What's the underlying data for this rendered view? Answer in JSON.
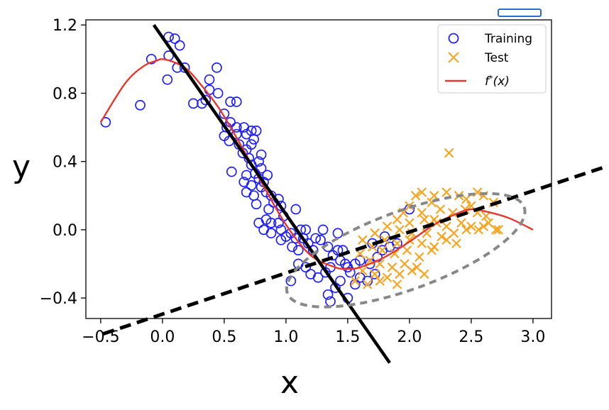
{
  "chart_data": {
    "type": "scatter",
    "title": "",
    "xlabel": "x",
    "ylabel": "y",
    "xlim": [
      -0.62,
      3.15
    ],
    "ylim": [
      -0.52,
      1.23
    ],
    "xticks": [
      -0.5,
      0.0,
      0.5,
      1.0,
      1.5,
      2.0,
      2.5,
      3.0
    ],
    "xtick_labels": [
      "−0.5",
      "0.0",
      "0.5",
      "1.0",
      "1.5",
      "2.0",
      "2.5",
      "3.0"
    ],
    "yticks": [
      -0.4,
      0.0,
      0.4,
      0.8,
      1.2
    ],
    "ytick_labels": [
      "−0.4",
      "0.0",
      "0.4",
      "0.8",
      "1.2"
    ],
    "grid": false,
    "legend_position": "top-right",
    "colors": {
      "training": "#1f1fff",
      "test": "#f5a623",
      "curve": "#e8372c",
      "solid_line": "#000000",
      "dashed_line": "#000000",
      "ellipse": "#888888"
    },
    "series": [
      {
        "name": "Training",
        "marker": "circle",
        "points": [
          [
            -0.46,
            0.63
          ],
          [
            -0.18,
            0.73
          ],
          [
            -0.09,
            1.0
          ],
          [
            0.05,
            1.13
          ],
          [
            0.1,
            1.12
          ],
          [
            0.14,
            1.08
          ],
          [
            0.05,
            1.02
          ],
          [
            0.12,
            0.95
          ],
          [
            0.18,
            0.95
          ],
          [
            0.04,
            0.88
          ],
          [
            0.44,
            0.95
          ],
          [
            0.38,
            0.88
          ],
          [
            0.38,
            0.82
          ],
          [
            0.35,
            0.76
          ],
          [
            0.25,
            0.74
          ],
          [
            0.32,
            0.74
          ],
          [
            0.45,
            0.8
          ],
          [
            0.55,
            0.75
          ],
          [
            0.6,
            0.75
          ],
          [
            0.5,
            0.68
          ],
          [
            0.55,
            0.63
          ],
          [
            0.52,
            0.6
          ],
          [
            0.6,
            0.6
          ],
          [
            0.66,
            0.6
          ],
          [
            0.68,
            0.56
          ],
          [
            0.6,
            0.56
          ],
          [
            0.5,
            0.55
          ],
          [
            0.54,
            0.52
          ],
          [
            0.62,
            0.5
          ],
          [
            0.68,
            0.47
          ],
          [
            0.72,
            0.5
          ],
          [
            0.72,
            0.58
          ],
          [
            0.76,
            0.58
          ],
          [
            0.74,
            0.53
          ],
          [
            0.65,
            0.45
          ],
          [
            0.7,
            0.42
          ],
          [
            0.8,
            0.44
          ],
          [
            0.78,
            0.4
          ],
          [
            0.72,
            0.38
          ],
          [
            0.8,
            0.36
          ],
          [
            0.75,
            0.33
          ],
          [
            0.68,
            0.32
          ],
          [
            0.78,
            0.3
          ],
          [
            0.82,
            0.28
          ],
          [
            0.85,
            0.32
          ],
          [
            0.8,
            0.25
          ],
          [
            0.72,
            0.26
          ],
          [
            0.68,
            0.22
          ],
          [
            0.74,
            0.2
          ],
          [
            0.76,
            0.15
          ],
          [
            0.56,
            0.34
          ],
          [
            0.66,
            0.28
          ],
          [
            0.84,
            0.22
          ],
          [
            0.88,
            0.2
          ],
          [
            0.9,
            0.16
          ],
          [
            0.86,
            0.12
          ],
          [
            0.94,
            0.18
          ],
          [
            0.96,
            0.14
          ],
          [
            0.84,
            0.06
          ],
          [
            0.88,
            0.04
          ],
          [
            0.82,
            0.0
          ],
          [
            0.88,
            -0.02
          ],
          [
            0.94,
            0.04
          ],
          [
            0.96,
            0.0
          ],
          [
            0.78,
            0.04
          ],
          [
            0.98,
            0.08
          ],
          [
            1.08,
            0.12
          ],
          [
            1.0,
            -0.04
          ],
          [
            1.04,
            -0.02
          ],
          [
            0.96,
            -0.06
          ],
          [
            1.08,
            -0.05
          ],
          [
            1.12,
            0.0
          ],
          [
            1.16,
            0.0
          ],
          [
            1.14,
            -0.05
          ],
          [
            1.05,
            -0.1
          ],
          [
            1.1,
            -0.12
          ],
          [
            1.18,
            -0.08
          ],
          [
            1.24,
            -0.05
          ],
          [
            1.22,
            -0.12
          ],
          [
            1.3,
            0.0
          ],
          [
            1.28,
            -0.06
          ],
          [
            1.34,
            -0.1
          ],
          [
            1.42,
            -0.12
          ],
          [
            1.38,
            -0.15
          ],
          [
            1.44,
            -0.18
          ],
          [
            1.48,
            -0.2
          ],
          [
            1.5,
            -0.22
          ],
          [
            1.52,
            -0.25
          ],
          [
            1.56,
            -0.2
          ],
          [
            1.6,
            -0.18
          ],
          [
            1.46,
            -0.12
          ],
          [
            1.36,
            -0.22
          ],
          [
            1.32,
            -0.25
          ],
          [
            1.26,
            -0.28
          ],
          [
            1.2,
            -0.26
          ],
          [
            1.16,
            -0.22
          ],
          [
            1.1,
            -0.2
          ],
          [
            1.04,
            -0.3
          ],
          [
            1.44,
            -0.3
          ],
          [
            1.56,
            -0.32
          ],
          [
            1.6,
            -0.28
          ],
          [
            1.66,
            -0.3
          ],
          [
            1.72,
            -0.26
          ],
          [
            1.68,
            -0.2
          ],
          [
            1.74,
            -0.16
          ],
          [
            1.78,
            -0.12
          ],
          [
            1.84,
            -0.1
          ],
          [
            1.7,
            -0.08
          ],
          [
            1.8,
            -0.04
          ],
          [
            1.9,
            -0.08
          ],
          [
            1.34,
            -0.38
          ],
          [
            1.36,
            -0.42
          ],
          [
            1.5,
            -0.4
          ],
          [
            1.4,
            -0.34
          ],
          [
            2.0,
            0.12
          ],
          [
            1.42,
            -0.02
          ]
        ]
      },
      {
        "name": "Test",
        "marker": "x",
        "points": [
          [
            2.32,
            0.45
          ],
          [
            2.05,
            0.2
          ],
          [
            2.1,
            0.22
          ],
          [
            2.2,
            0.2
          ],
          [
            2.3,
            0.22
          ],
          [
            2.4,
            0.2
          ],
          [
            2.46,
            0.18
          ],
          [
            2.55,
            0.22
          ],
          [
            2.6,
            0.2
          ],
          [
            2.18,
            0.16
          ],
          [
            2.0,
            0.14
          ],
          [
            1.95,
            0.1
          ],
          [
            2.1,
            0.1
          ],
          [
            2.25,
            0.12
          ],
          [
            2.35,
            0.1
          ],
          [
            2.45,
            0.12
          ],
          [
            2.5,
            0.14
          ],
          [
            2.55,
            0.1
          ],
          [
            2.62,
            0.08
          ],
          [
            1.9,
            0.06
          ],
          [
            2.0,
            0.04
          ],
          [
            2.12,
            0.06
          ],
          [
            2.22,
            0.04
          ],
          [
            2.3,
            0.02
          ],
          [
            2.42,
            0.04
          ],
          [
            2.5,
            0.02
          ],
          [
            2.6,
            0.02
          ],
          [
            2.7,
            0.0
          ],
          [
            1.82,
            0.02
          ],
          [
            1.92,
            0.0
          ],
          [
            2.02,
            -0.02
          ],
          [
            2.14,
            -0.02
          ],
          [
            2.26,
            -0.04
          ],
          [
            2.36,
            -0.02
          ],
          [
            2.46,
            0.0
          ],
          [
            2.56,
            0.0
          ],
          [
            1.72,
            -0.02
          ],
          [
            1.8,
            -0.06
          ],
          [
            1.9,
            -0.08
          ],
          [
            2.0,
            -0.06
          ],
          [
            2.1,
            -0.08
          ],
          [
            2.2,
            -0.1
          ],
          [
            2.3,
            -0.06
          ],
          [
            1.62,
            -0.06
          ],
          [
            1.7,
            -0.1
          ],
          [
            1.78,
            -0.12
          ],
          [
            1.88,
            -0.14
          ],
          [
            1.98,
            -0.12
          ],
          [
            2.08,
            -0.16
          ],
          [
            2.18,
            -0.12
          ],
          [
            1.6,
            -0.14
          ],
          [
            1.68,
            -0.18
          ],
          [
            1.76,
            -0.2
          ],
          [
            1.86,
            -0.22
          ],
          [
            1.96,
            -0.2
          ],
          [
            2.06,
            -0.22
          ],
          [
            1.62,
            -0.24
          ],
          [
            1.72,
            -0.26
          ],
          [
            1.82,
            -0.28
          ],
          [
            1.92,
            -0.26
          ],
          [
            2.02,
            -0.24
          ],
          [
            1.56,
            -0.3
          ],
          [
            1.66,
            -0.32
          ],
          [
            1.76,
            -0.3
          ],
          [
            2.12,
            -0.26
          ],
          [
            1.9,
            -0.32
          ],
          [
            2.64,
            0.04
          ],
          [
            2.68,
            0.16
          ],
          [
            2.72,
            0.0
          ],
          [
            2.2,
            0.06
          ],
          [
            2.38,
            -0.08
          ]
        ]
      },
      {
        "name": "f*(x)",
        "marker": "line",
        "x": [
          -0.5,
          -0.3,
          -0.15,
          -0.05,
          0.0,
          0.1,
          0.2,
          0.3,
          0.45,
          0.6,
          0.8,
          1.0,
          1.2,
          1.4,
          1.5,
          1.6,
          1.8,
          2.0,
          2.2,
          2.4,
          2.5,
          2.6,
          2.8,
          3.0
        ],
        "y": [
          0.63,
          0.86,
          0.96,
          0.99,
          1.0,
          0.98,
          0.94,
          0.86,
          0.72,
          0.54,
          0.28,
          0.03,
          -0.15,
          -0.22,
          -0.23,
          -0.22,
          -0.16,
          -0.07,
          0.03,
          0.1,
          0.12,
          0.11,
          0.07,
          0.0
        ]
      }
    ],
    "overlays": [
      {
        "name": "solid_line",
        "style": "solid",
        "x": [
          -0.07,
          1.84
        ],
        "y": [
          1.2,
          -0.78
        ]
      },
      {
        "name": "dashed_line",
        "style": "dashed",
        "x": [
          -0.48,
          3.59
        ],
        "y": [
          -0.61,
          0.37
        ]
      },
      {
        "name": "ellipse",
        "style": "dashed",
        "center": [
          1.97,
          -0.12
        ],
        "semi_axes": [
          1.02,
          0.23
        ],
        "rotation_deg": 20
      }
    ],
    "legend": [
      {
        "label": "Training",
        "marker": "circle"
      },
      {
        "label": "Test",
        "marker": "x"
      },
      {
        "label": "f*(x)",
        "marker": "line"
      }
    ]
  }
}
